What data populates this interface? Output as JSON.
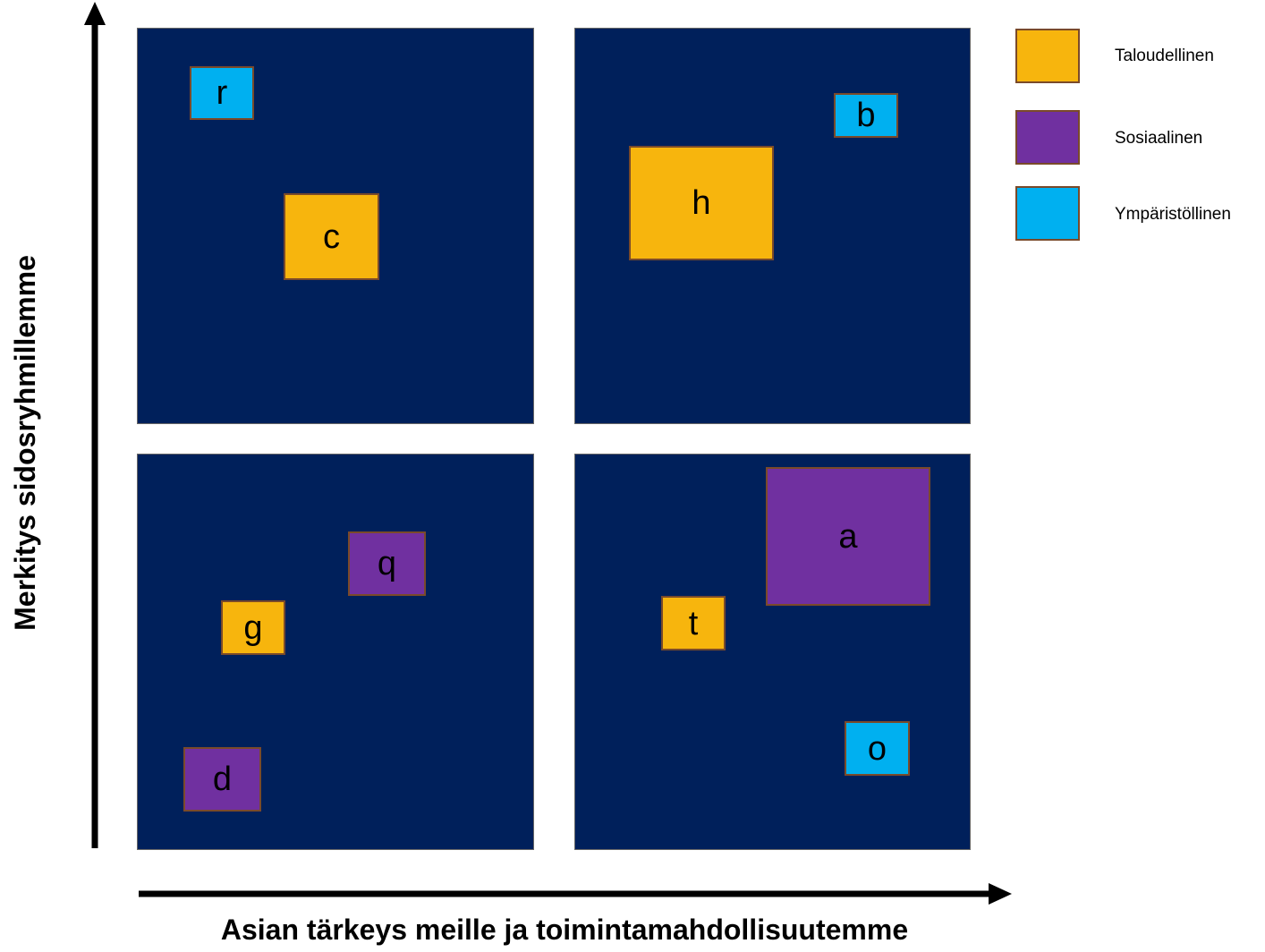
{
  "axes": {
    "x_label": "Asian tärkeys meille ja toimintamahdollisuutemme",
    "y_label": "Merkitys sidosryhmillemme"
  },
  "legend": [
    {
      "label": "Taloudellinen",
      "color": "#f7b50d"
    },
    {
      "label": "Sosiaalinen",
      "color": "#7030a0"
    },
    {
      "label": "Ympäristöllinen",
      "color": "#00b0f0"
    }
  ],
  "quadrant_color": "#00205b",
  "items": [
    {
      "label": "r",
      "category": "Ympäristöllinen",
      "quadrant": "top-left"
    },
    {
      "label": "c",
      "category": "Taloudellinen",
      "quadrant": "top-left"
    },
    {
      "label": "b",
      "category": "Ympäristöllinen",
      "quadrant": "top-right"
    },
    {
      "label": "h",
      "category": "Taloudellinen",
      "quadrant": "top-right"
    },
    {
      "label": "q",
      "category": "Sosiaalinen",
      "quadrant": "bottom-left"
    },
    {
      "label": "g",
      "category": "Taloudellinen",
      "quadrant": "bottom-left"
    },
    {
      "label": "d",
      "category": "Sosiaalinen",
      "quadrant": "bottom-left"
    },
    {
      "label": "a",
      "category": "Sosiaalinen",
      "quadrant": "bottom-right"
    },
    {
      "label": "t",
      "category": "Taloudellinen",
      "quadrant": "bottom-right"
    },
    {
      "label": "o",
      "category": "Ympäristöllinen",
      "quadrant": "bottom-right"
    }
  ]
}
